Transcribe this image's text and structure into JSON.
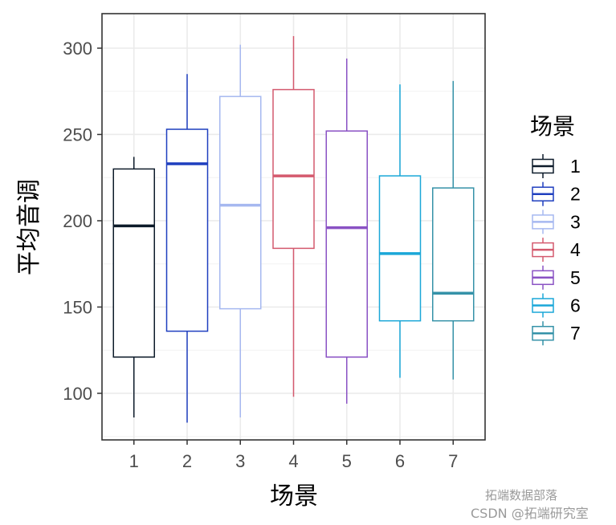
{
  "chart_data": {
    "type": "box",
    "xlabel": "场景",
    "ylabel": "平均音调",
    "legend_title": "场景",
    "legend_position": "right",
    "categories": [
      "1",
      "2",
      "3",
      "4",
      "5",
      "6",
      "7"
    ],
    "ylim": [
      73,
      320
    ],
    "yticks": [
      100,
      150,
      200,
      250,
      300
    ],
    "grid": true,
    "colors": [
      "#0d1b2a",
      "#1f3fbf",
      "#a6b8f0",
      "#d45a6e",
      "#8a52c4",
      "#1aa7d8",
      "#3592a8"
    ],
    "boxes": [
      {
        "category": "1",
        "min": 86,
        "q1": 121,
        "median": 197,
        "q3": 230,
        "max": 237
      },
      {
        "category": "2",
        "min": 83,
        "q1": 136,
        "median": 233,
        "q3": 253,
        "max": 285
      },
      {
        "category": "3",
        "min": 86,
        "q1": 149,
        "median": 209,
        "q3": 272,
        "max": 302
      },
      {
        "category": "4",
        "min": 98,
        "q1": 184,
        "median": 226,
        "q3": 276,
        "max": 307
      },
      {
        "category": "5",
        "min": 94,
        "q1": 121,
        "median": 196,
        "q3": 252,
        "max": 294
      },
      {
        "category": "6",
        "min": 109,
        "q1": 142,
        "median": 181,
        "q3": 226,
        "max": 279
      },
      {
        "category": "7",
        "min": 108,
        "q1": 142,
        "median": 158,
        "q3": 219,
        "max": 281
      }
    ]
  },
  "watermark": {
    "line1": "拓端数据部落",
    "line2": "CSDN @拓端研究室"
  }
}
